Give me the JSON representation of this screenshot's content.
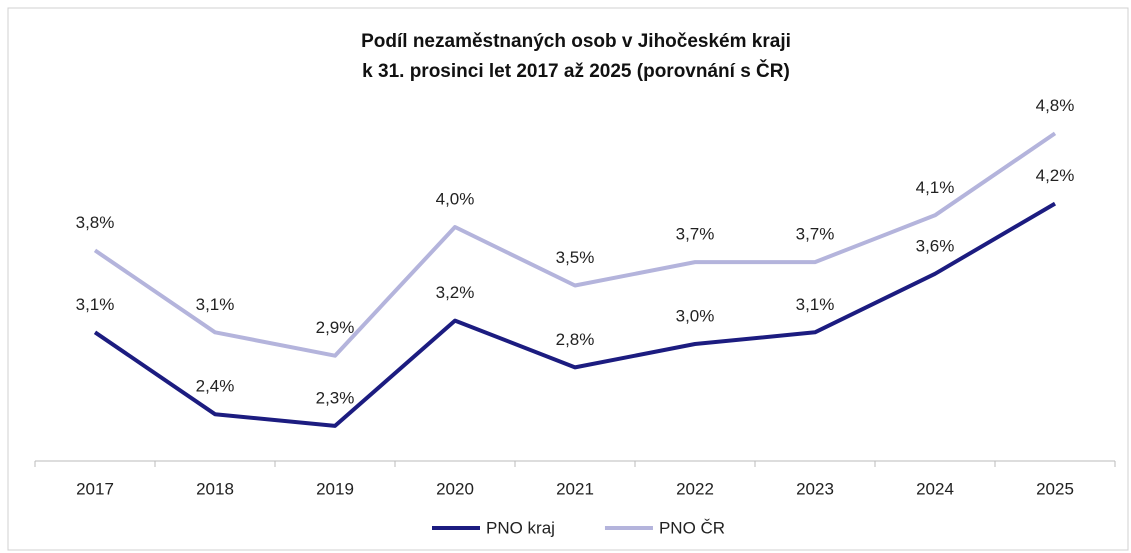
{
  "chart_data": {
    "type": "line",
    "title": [
      "Podíl nezaměstnaných osob v Jihočeském kraji",
      "k 31. prosinci let 2017 až 2025 (porovnání s ČR)"
    ],
    "categories": [
      "2017",
      "2018",
      "2019",
      "2020",
      "2021",
      "2022",
      "2023",
      "2024",
      "2025"
    ],
    "series": [
      {
        "name": "PNO kraj",
        "color": "#1c1c80",
        "values": [
          3.1,
          2.4,
          2.3,
          3.2,
          2.8,
          3.0,
          3.1,
          3.6,
          4.2
        ],
        "value_labels": [
          "3,1%",
          "2,4%",
          "2,3%",
          "3,2%",
          "2,8%",
          "3,0%",
          "3,1%",
          "3,6%",
          "4,2%"
        ]
      },
      {
        "name": "PNO ČR",
        "color": "#b4b4dc",
        "values": [
          3.8,
          3.1,
          2.9,
          4.0,
          3.5,
          3.7,
          3.7,
          4.1,
          4.8
        ],
        "value_labels": [
          "3,8%",
          "3,1%",
          "2,9%",
          "4,0%",
          "3,5%",
          "3,7%",
          "3,7%",
          "4,1%",
          "4,8%"
        ]
      }
    ],
    "ylim": [
      2,
      5
    ],
    "legend": "bottom"
  }
}
